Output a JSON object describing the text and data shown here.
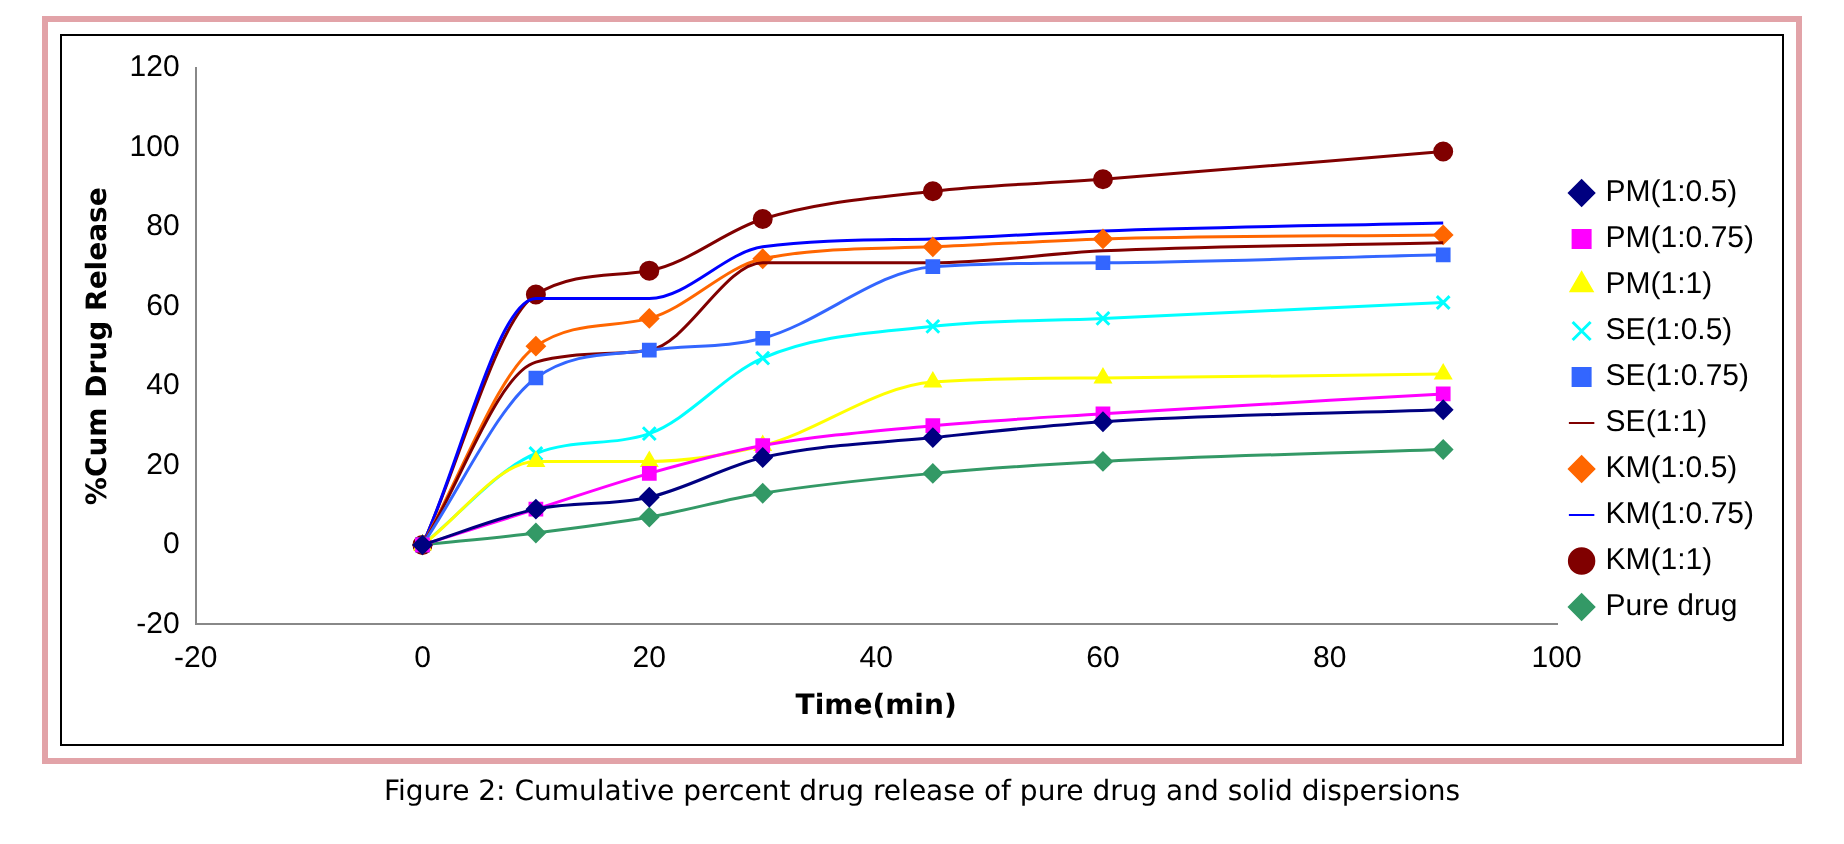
{
  "chart_data": {
    "type": "line",
    "xlabel": "Time(min)",
    "ylabel": "%Cum Drug Release",
    "x": [
      0,
      10,
      20,
      30,
      45,
      60,
      90
    ],
    "xlim": [
      -20,
      100
    ],
    "xticks": [
      -20,
      0,
      20,
      40,
      60,
      80,
      100
    ],
    "ylim": [
      -20,
      120
    ],
    "yticks": [
      -20,
      0,
      20,
      40,
      60,
      80,
      100,
      120
    ],
    "grid": false,
    "legend": "right",
    "annotations": [
      "Figure 2: Cumulative percent drug release of pure drug and solid dispersions"
    ],
    "series": [
      {
        "name": "PM(1:0.5)",
        "color": "#000080",
        "marker": "diamond",
        "values": [
          0,
          9,
          12,
          22,
          27,
          31,
          34
        ]
      },
      {
        "name": "PM(1:0.75)",
        "color": "#ff00ff",
        "marker": "square",
        "values": [
          0,
          9,
          18,
          25,
          30,
          33,
          38
        ]
      },
      {
        "name": "PM(1:1)",
        "color": "#ffff00",
        "marker": "triangle",
        "values": [
          0,
          21,
          21,
          25,
          41,
          42,
          43
        ]
      },
      {
        "name": "SE(1:0.5)",
        "color": "#00ffff",
        "marker": "cross",
        "values": [
          0,
          23,
          28,
          47,
          55,
          57,
          61
        ]
      },
      {
        "name": "SE(1:0.75)",
        "color": "#3366ff",
        "marker": "square",
        "values": [
          0,
          42,
          49,
          52,
          70,
          71,
          73
        ]
      },
      {
        "name": "SE(1:1)",
        "color": "#800000",
        "marker": "none",
        "values": [
          0,
          46,
          49,
          71,
          71,
          74,
          76
        ]
      },
      {
        "name": "KM(1:0.5)",
        "color": "#ff6600",
        "marker": "diamond",
        "values": [
          0,
          50,
          57,
          72,
          75,
          77,
          78
        ]
      },
      {
        "name": "KM(1:0.75)",
        "color": "#0000ff",
        "marker": "none",
        "values": [
          0,
          62,
          62,
          75,
          77,
          79,
          81
        ]
      },
      {
        "name": "KM(1:1)",
        "color": "#800000",
        "marker": "circle",
        "values": [
          0,
          63,
          69,
          82,
          89,
          92,
          99
        ]
      },
      {
        "name": "Pure drug",
        "color": "#339966",
        "marker": "diamond",
        "values": [
          0,
          3,
          7,
          13,
          18,
          21,
          24
        ]
      }
    ]
  }
}
